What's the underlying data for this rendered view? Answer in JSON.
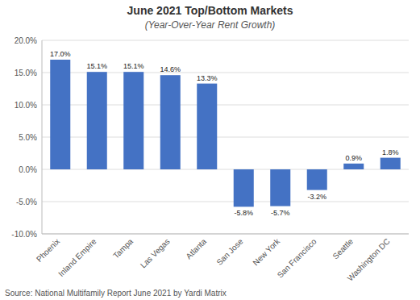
{
  "chart_data": {
    "type": "bar",
    "title": "June 2021 Top/Bottom Markets",
    "subtitle": "(Year-Over-Year Rent Growth)",
    "source": "Source: National Multifamily Report June 2021 by Yardi Matrix",
    "categories": [
      "Phoenix",
      "Inland Empire",
      "Tampa",
      "Las Vegas",
      "Atlanta",
      "San Jose",
      "New York",
      "San Francisco",
      "Seattle",
      "Washington DC"
    ],
    "values": [
      17.0,
      15.1,
      15.1,
      14.6,
      13.3,
      -5.8,
      -5.7,
      -3.2,
      0.9,
      1.8
    ],
    "value_labels": [
      "17.0%",
      "15.1%",
      "15.1%",
      "14.6%",
      "13.3%",
      "-5.8%",
      "-5.7%",
      "-3.2%",
      "0.9%",
      "1.8%"
    ],
    "data_labels": true,
    "color": "#4472C4",
    "ylim": [
      -10.0,
      20.0
    ],
    "yticks": [
      {
        "value": -10.0,
        "label": "-10.0%"
      },
      {
        "value": -5.0,
        "label": "-5.0%"
      },
      {
        "value": 0.0,
        "label": "0.0%"
      },
      {
        "value": 5.0,
        "label": "5.0%"
      },
      {
        "value": 10.0,
        "label": "10.0%"
      },
      {
        "value": 15.0,
        "label": "15.0%"
      },
      {
        "value": 20.0,
        "label": "20.0%"
      }
    ],
    "grid": true
  }
}
